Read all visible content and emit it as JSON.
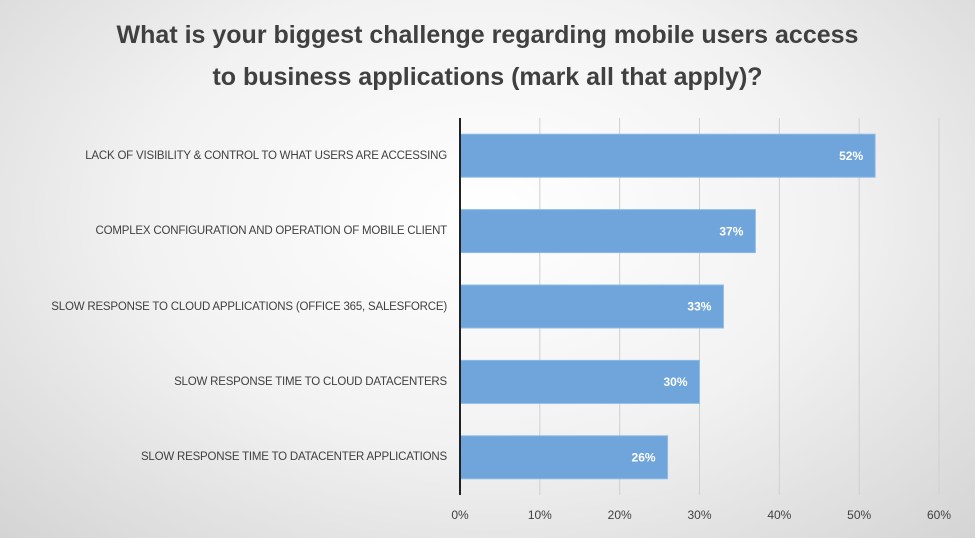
{
  "chart_data": {
    "type": "hbar",
    "title": "What is your biggest challenge regarding mobile users access to business applications (mark all that apply)?",
    "categories": [
      "LACK OF VISIBILITY & CONTROL TO WHAT USERS ARE ACCESSING",
      "COMPLEX CONFIGURATION AND OPERATION OF MOBILE CLIENT",
      "SLOW RESPONSE TO CLOUD APPLICATIONS (OFFICE 365, SALESFORCE)",
      "SLOW RESPONSE TIME TO CLOUD DATACENTERS",
      "SLOW RESPONSE TIME TO DATACENTER APPLICATIONS"
    ],
    "values": [
      52,
      37,
      33,
      30,
      26
    ],
    "value_labels": [
      "52%",
      "37%",
      "33%",
      "30%",
      "26%"
    ],
    "color": "#6fa5da",
    "xlim": [
      0,
      60
    ],
    "xticks": [
      {
        "value": 0,
        "label": "0%"
      },
      {
        "value": 10,
        "label": "10%"
      },
      {
        "value": 20,
        "label": "20%"
      },
      {
        "value": 30,
        "label": "30%"
      },
      {
        "value": 40,
        "label": "40%"
      },
      {
        "value": 50,
        "label": "50%"
      },
      {
        "value": 60,
        "label": "60%"
      }
    ],
    "grid": true
  }
}
